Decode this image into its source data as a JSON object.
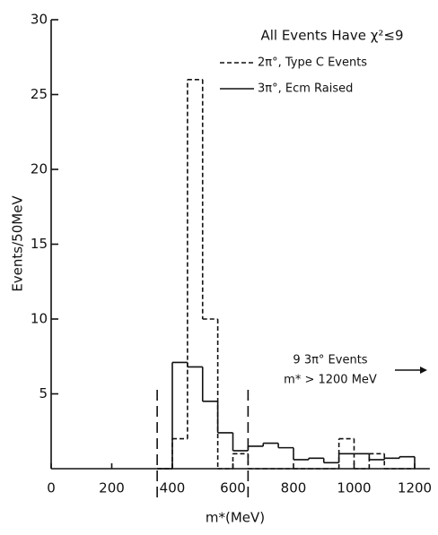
{
  "chart_data": {
    "type": "histogram",
    "title": "All Events Have χ²≤9",
    "xlabel": "m*(MeV)",
    "ylabel": "Events/50MeV",
    "annotation": [
      "9 3π° Events",
      "m* > 1200 MeV"
    ],
    "bins": [
      350,
      400,
      450,
      500,
      550,
      600,
      650,
      700,
      750,
      800,
      850,
      900,
      950,
      1000,
      1050,
      1100,
      1150,
      1200
    ],
    "series": [
      {
        "name": "2π°, Type C Events",
        "style": "dashed",
        "color": "#111",
        "values": [
          0,
          2,
          26,
          10,
          0,
          1,
          0,
          0,
          0,
          0,
          0,
          0,
          2,
          0,
          1,
          0,
          0
        ]
      },
      {
        "name": "3π°, Ecm Raised",
        "style": "solid",
        "color": "#111",
        "values": [
          0,
          7.1,
          6.8,
          4.5,
          2.4,
          1.2,
          1.5,
          1.7,
          1.4,
          0.6,
          0.7,
          0.4,
          1.0,
          1.0,
          0.6,
          0.7,
          0.8
        ]
      }
    ],
    "cut_lines": [
      350,
      650
    ],
    "xlim": [
      0,
      1250
    ],
    "ylim": [
      0,
      30
    ],
    "xticks": [
      0,
      200,
      400,
      600,
      800,
      1000,
      1200
    ],
    "yticks": [
      5,
      10,
      15,
      20,
      25,
      30
    ]
  }
}
